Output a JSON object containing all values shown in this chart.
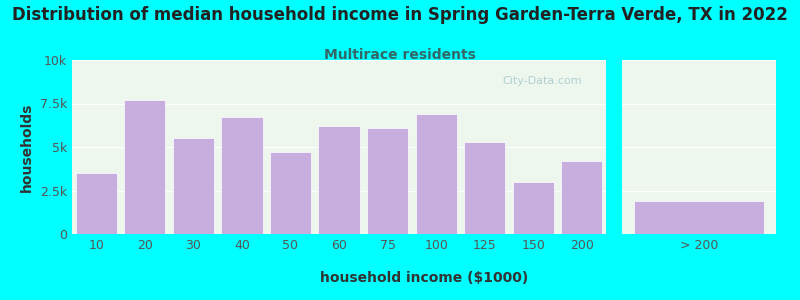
{
  "title": "Distribution of median household income in Spring Garden-Terra Verde, TX in 2022",
  "subtitle": "Multirace residents",
  "xlabel": "household income ($1000)",
  "ylabel": "households",
  "background_color": "#00FFFF",
  "bar_color": "#c8aede",
  "bar_edge_color": "#ffffff",
  "categories": [
    "10",
    "20",
    "30",
    "40",
    "50",
    "60",
    "75",
    "100",
    "125",
    "150",
    "200",
    "> 200"
  ],
  "values": [
    3500,
    7700,
    5500,
    6700,
    4700,
    6200,
    6100,
    6900,
    5300,
    3000,
    4200,
    1900
  ],
  "ylim": [
    0,
    10000
  ],
  "yticks": [
    0,
    2500,
    5000,
    7500,
    10000
  ],
  "ytick_labels": [
    "0",
    "2.5k",
    "5k",
    "7.5k",
    "10k"
  ],
  "title_fontsize": 12,
  "subtitle_fontsize": 10,
  "subtitle_color": "#336666",
  "axis_label_fontsize": 10,
  "tick_fontsize": 9,
  "watermark_text": "City-Data.com",
  "watermark_color": "#aacccc",
  "title_color": "#222222"
}
